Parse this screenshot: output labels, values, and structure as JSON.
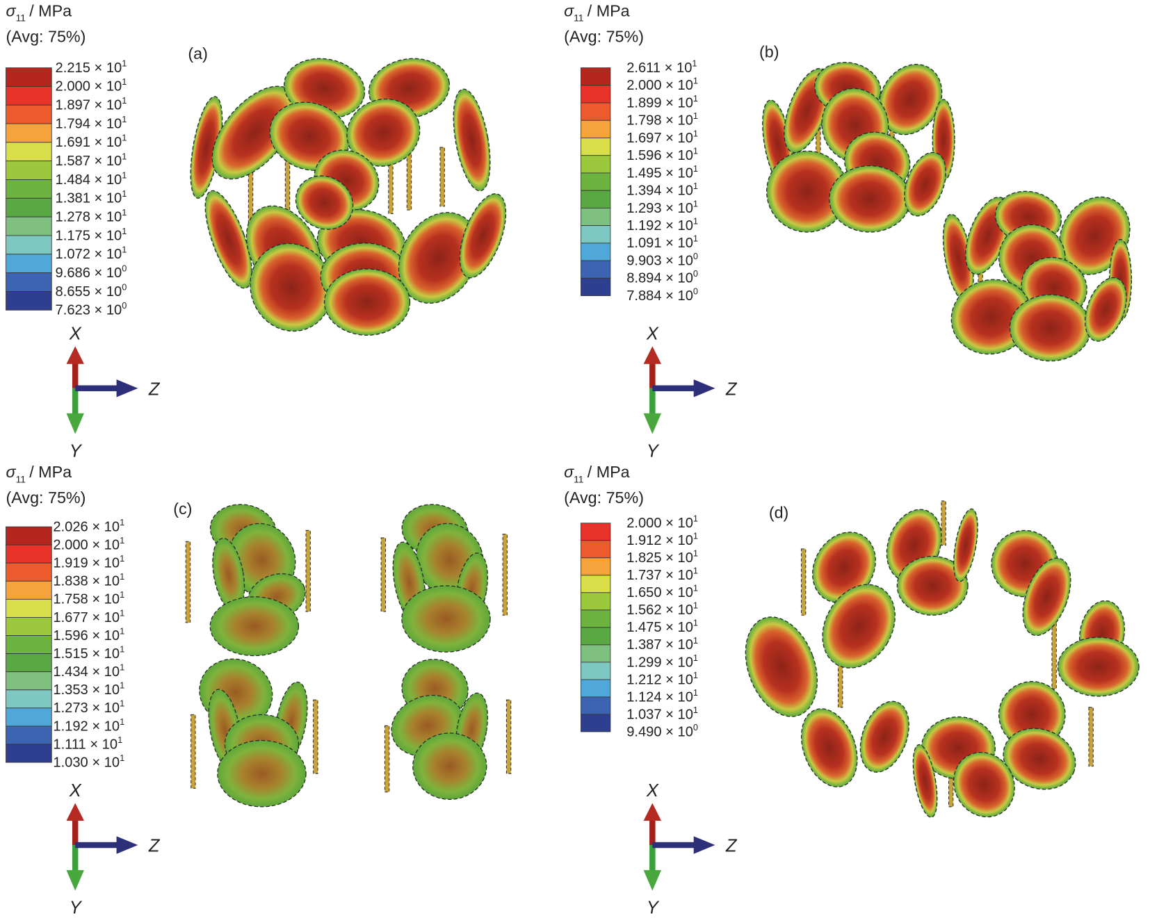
{
  "panels": [
    {
      "label": "(a)",
      "legend": {
        "title": {
          "symbol": "σ",
          "subscript": "11",
          "unit": "/ MPa"
        },
        "averaging": "(Avg: 75%)",
        "ticks": [
          {
            "base": "2.215 × 10",
            "exp": "1"
          },
          {
            "base": "2.000 × 10",
            "exp": "1"
          },
          {
            "base": "1.897 × 10",
            "exp": "1"
          },
          {
            "base": "1.794 × 10",
            "exp": "1"
          },
          {
            "base": "1.691 × 10",
            "exp": "1"
          },
          {
            "base": "1.587 × 10",
            "exp": "1"
          },
          {
            "base": "1.484 × 10",
            "exp": "1"
          },
          {
            "base": "1.381 × 10",
            "exp": "1"
          },
          {
            "base": "1.278 × 10",
            "exp": "1"
          },
          {
            "base": "1.175 × 10",
            "exp": "1"
          },
          {
            "base": "1.072 × 10",
            "exp": "1"
          },
          {
            "base": "9.686 × 10",
            "exp": "0"
          },
          {
            "base": "8.655 × 10",
            "exp": "0"
          },
          {
            "base": "7.623 × 10",
            "exp": "0"
          }
        ]
      },
      "axes": {
        "x": "X",
        "z": "Z",
        "y": "Y"
      }
    },
    {
      "label": "(b)",
      "legend": {
        "title": {
          "symbol": "σ",
          "subscript": "11",
          "unit": "/ MPa"
        },
        "averaging": "(Avg: 75%)",
        "ticks": [
          {
            "base": "2.611 × 10",
            "exp": "1"
          },
          {
            "base": "2.000 × 10",
            "exp": "1"
          },
          {
            "base": "1.899 × 10",
            "exp": "1"
          },
          {
            "base": "1.798 × 10",
            "exp": "1"
          },
          {
            "base": "1.697 × 10",
            "exp": "1"
          },
          {
            "base": "1.596 × 10",
            "exp": "1"
          },
          {
            "base": "1.495 × 10",
            "exp": "1"
          },
          {
            "base": "1.394 × 10",
            "exp": "1"
          },
          {
            "base": "1.293 × 10",
            "exp": "1"
          },
          {
            "base": "1.192 × 10",
            "exp": "1"
          },
          {
            "base": "1.091 × 10",
            "exp": "1"
          },
          {
            "base": "9.903 × 10",
            "exp": "0"
          },
          {
            "base": "8.894 × 10",
            "exp": "0"
          },
          {
            "base": "7.884 × 10",
            "exp": "0"
          }
        ]
      },
      "axes": {
        "x": "X",
        "z": "Z",
        "y": "Y"
      }
    },
    {
      "label": "(c)",
      "legend": {
        "title": {
          "symbol": "σ",
          "subscript": "11",
          "unit": "/ MPa"
        },
        "averaging": "(Avg: 75%)",
        "ticks": [
          {
            "base": "2.026 × 10",
            "exp": "1"
          },
          {
            "base": "2.000 × 10",
            "exp": "1"
          },
          {
            "base": "1.919 × 10",
            "exp": "1"
          },
          {
            "base": "1.838 × 10",
            "exp": "1"
          },
          {
            "base": "1.758 × 10",
            "exp": "1"
          },
          {
            "base": "1.677 × 10",
            "exp": "1"
          },
          {
            "base": "1.596 × 10",
            "exp": "1"
          },
          {
            "base": "1.515 × 10",
            "exp": "1"
          },
          {
            "base": "1.434 × 10",
            "exp": "1"
          },
          {
            "base": "1.353 × 10",
            "exp": "1"
          },
          {
            "base": "1.273 × 10",
            "exp": "1"
          },
          {
            "base": "1.192 × 10",
            "exp": "1"
          },
          {
            "base": "1.111 × 10",
            "exp": "1"
          },
          {
            "base": "1.030 × 10",
            "exp": "1"
          }
        ]
      },
      "axes": {
        "x": "X",
        "z": "Z",
        "y": "Y"
      }
    },
    {
      "label": "(d)",
      "legend": {
        "title": {
          "symbol": "σ",
          "subscript": "11",
          "unit": "/ MPa"
        },
        "averaging": "(Avg: 75%)",
        "ticks": [
          {
            "base": "2.000 × 10",
            "exp": "1"
          },
          {
            "base": "1.912 × 10",
            "exp": "1"
          },
          {
            "base": "1.825 × 10",
            "exp": "1"
          },
          {
            "base": "1.737 × 10",
            "exp": "1"
          },
          {
            "base": "1.650 × 10",
            "exp": "1"
          },
          {
            "base": "1.562 × 10",
            "exp": "1"
          },
          {
            "base": "1.475 × 10",
            "exp": "1"
          },
          {
            "base": "1.387 × 10",
            "exp": "1"
          },
          {
            "base": "1.299 × 10",
            "exp": "1"
          },
          {
            "base": "1.212 × 10",
            "exp": "1"
          },
          {
            "base": "1.124 × 10",
            "exp": "1"
          },
          {
            "base": "1.037 × 10",
            "exp": "1"
          },
          {
            "base": "9.490 × 10",
            "exp": "0"
          }
        ]
      },
      "axes": {
        "x": "X",
        "z": "Z",
        "y": "Y"
      }
    }
  ]
}
